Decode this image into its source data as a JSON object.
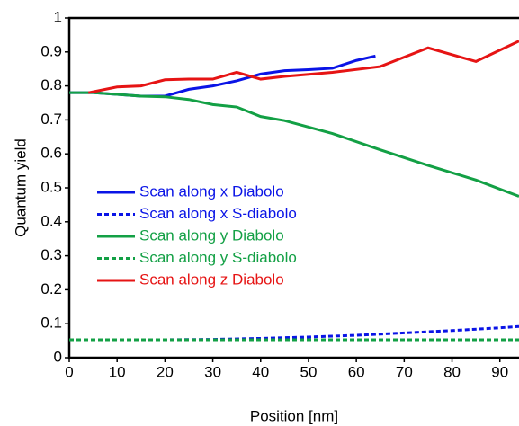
{
  "chart_data": {
    "type": "line",
    "x_label": "Position [nm]",
    "y_label": "Quantum yield",
    "xlim": [
      0,
      94
    ],
    "ylim": [
      0,
      1
    ],
    "xticks": [
      0,
      10,
      20,
      30,
      40,
      50,
      60,
      70,
      80,
      90
    ],
    "yticks": [
      0,
      0.1,
      0.2,
      0.3,
      0.4,
      0.5,
      0.6,
      0.7,
      0.8,
      0.9,
      1
    ],
    "series": [
      {
        "name": "Scan along x Diabolo",
        "color": "#0a14e6",
        "dashed": false,
        "x": [
          0,
          5,
          10,
          15,
          20,
          25,
          30,
          35,
          40,
          45,
          50,
          55,
          60,
          64
        ],
        "values": [
          0.78,
          0.78,
          0.775,
          0.77,
          0.77,
          0.79,
          0.8,
          0.815,
          0.835,
          0.845,
          0.848,
          0.852,
          0.875,
          0.888
        ]
      },
      {
        "name": "Scan along x S-diabolo",
        "color": "#0a14e6",
        "dashed": true,
        "x": [
          0,
          10,
          20,
          30,
          40,
          50,
          60,
          70,
          80,
          90,
          94
        ],
        "values": [
          0.053,
          0.053,
          0.053,
          0.054,
          0.057,
          0.061,
          0.066,
          0.073,
          0.08,
          0.088,
          0.092
        ]
      },
      {
        "name": "Scan along y Diabolo",
        "color": "#13a045",
        "dashed": false,
        "x": [
          0,
          5,
          10,
          15,
          20,
          25,
          30,
          35,
          40,
          45,
          55,
          65,
          75,
          85,
          94
        ],
        "values": [
          0.78,
          0.78,
          0.775,
          0.77,
          0.768,
          0.76,
          0.745,
          0.738,
          0.71,
          0.698,
          0.66,
          0.612,
          0.566,
          0.523,
          0.475
        ]
      },
      {
        "name": "Scan along y S-diabolo",
        "color": "#13a045",
        "dashed": true,
        "x": [
          0,
          94
        ],
        "values": [
          0.053,
          0.053
        ]
      },
      {
        "name": "Scan along z Diabolo",
        "color": "#e61414",
        "dashed": false,
        "x": [
          4,
          10,
          15,
          20,
          25,
          30,
          35,
          40,
          45,
          55,
          65,
          75,
          85,
          94
        ],
        "values": [
          0.78,
          0.797,
          0.8,
          0.818,
          0.82,
          0.82,
          0.84,
          0.82,
          0.828,
          0.84,
          0.857,
          0.912,
          0.872,
          0.932
        ]
      }
    ]
  }
}
